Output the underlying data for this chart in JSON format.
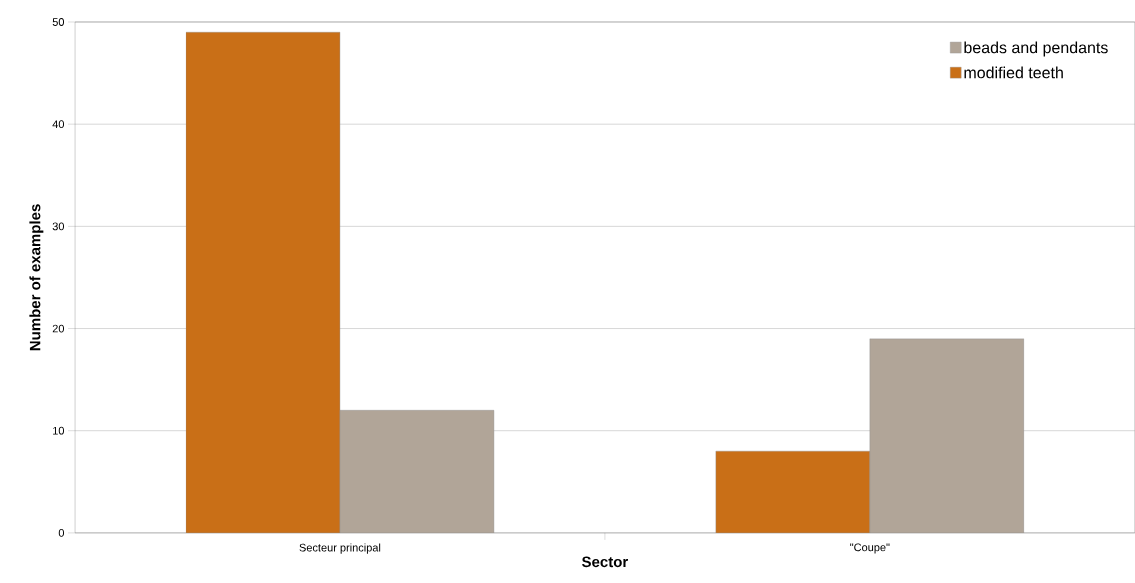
{
  "chart_data": {
    "type": "bar",
    "xlabel": "Sector",
    "ylabel": "Number of examples",
    "categories": [
      "Secteur principal",
      "\"Coupe\""
    ],
    "series": [
      {
        "name": "modified teeth",
        "color": "#c96f17",
        "values": [
          49,
          8
        ]
      },
      {
        "name": "beads and pendants",
        "color": "#b1a598",
        "values": [
          12,
          19
        ]
      }
    ],
    "ylim": [
      0,
      50
    ],
    "yticks": [
      0,
      10,
      20,
      30,
      40,
      50
    ],
    "grid": "y",
    "legend": "top right"
  }
}
